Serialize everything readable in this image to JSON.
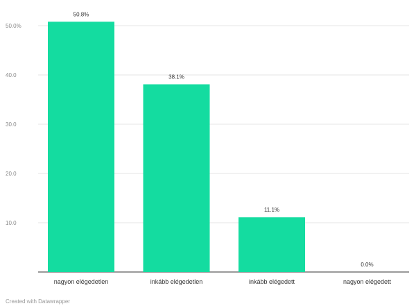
{
  "chart_data": {
    "type": "bar",
    "title": "",
    "categories": [
      "nagyon elégedetlen",
      "inkább elégedetlen",
      "inkább elégedett",
      "nagyon elégedett"
    ],
    "values": [
      50.8,
      38.1,
      11.1,
      0.0
    ],
    "value_labels": [
      "50.8%",
      "38.1%",
      "11.1%",
      "0.0%"
    ],
    "yticks": [
      10,
      20,
      30,
      40,
      50
    ],
    "ytick_labels": [
      "10.0",
      "20.0",
      "30.0",
      "40.0",
      "50.0%"
    ],
    "ylim": [
      0,
      53
    ],
    "grid": true,
    "bar_color": "#14dca0"
  },
  "footer": {
    "credit": "Created with Datawrapper"
  }
}
